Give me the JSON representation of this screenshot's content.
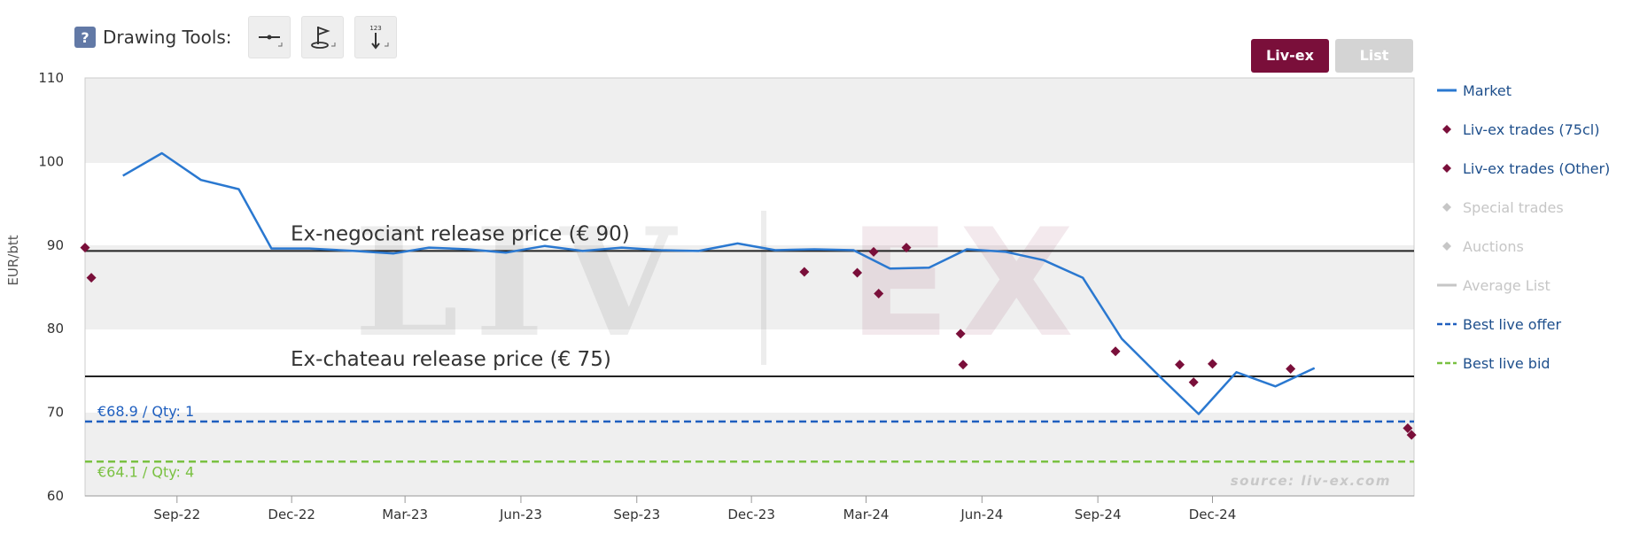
{
  "toolbar": {
    "help_glyph": "?",
    "label": "Drawing Tools:",
    "tools": [
      {
        "name": "line-tool-icon"
      },
      {
        "name": "flag-tool-icon"
      },
      {
        "name": "measure-tool-icon",
        "glyph": "123"
      }
    ]
  },
  "view_toggle": {
    "active": "Liv-ex",
    "inactive": "List",
    "colors": {
      "active_bg": "#7a0f3a",
      "inactive_bg": "#d4d4d4"
    }
  },
  "watermark": {
    "text_left": "LIV",
    "text_right": "EX"
  },
  "source_note": "source: liv-ex.com",
  "colors": {
    "market": "#2a78d0",
    "trades": "#7a0f3a",
    "best_offer": "#1f5fbf",
    "best_bid": "#7ac142",
    "special": "#cccccc",
    "release_line": "#222222",
    "band": "#efefef"
  },
  "chart_data": {
    "type": "line",
    "ylabel": "EUR/btt",
    "ylim": [
      60,
      110
    ],
    "yticks": [
      60,
      70,
      80,
      90,
      100,
      110
    ],
    "x_range": [
      "2022-06-20",
      "2025-05-10"
    ],
    "xticks": [
      {
        "label": "Sep-22",
        "date": "2022-09-01"
      },
      {
        "label": "Dec-22",
        "date": "2022-12-01"
      },
      {
        "label": "Mar-23",
        "date": "2023-03-01"
      },
      {
        "label": "Jun-23",
        "date": "2023-06-01"
      },
      {
        "label": "Sep-23",
        "date": "2023-09-01"
      },
      {
        "label": "Dec-23",
        "date": "2023-12-01"
      },
      {
        "label": "Mar-24",
        "date": "2024-03-01"
      },
      {
        "label": "Jun-24",
        "date": "2024-06-01"
      },
      {
        "label": "Sep-24",
        "date": "2024-09-01"
      },
      {
        "label": "Dec-24",
        "date": "2024-12-01"
      }
    ],
    "series": [
      {
        "name": "Market",
        "kind": "line",
        "points": [
          [
            "2022-07-20",
            98.3
          ],
          [
            "2022-08-20",
            101.0
          ],
          [
            "2022-09-20",
            97.8
          ],
          [
            "2022-10-20",
            96.7
          ],
          [
            "2022-11-15",
            89.6
          ],
          [
            "2022-12-15",
            89.6
          ],
          [
            "2023-01-20",
            89.3
          ],
          [
            "2023-02-20",
            89.0
          ],
          [
            "2023-03-20",
            89.7
          ],
          [
            "2023-04-20",
            89.5
          ],
          [
            "2023-05-20",
            89.1
          ],
          [
            "2023-06-20",
            89.9
          ],
          [
            "2023-07-20",
            89.3
          ],
          [
            "2023-08-20",
            89.7
          ],
          [
            "2023-09-20",
            89.4
          ],
          [
            "2023-10-20",
            89.3
          ],
          [
            "2023-11-20",
            90.2
          ],
          [
            "2023-12-20",
            89.4
          ],
          [
            "2024-01-20",
            89.5
          ],
          [
            "2024-02-20",
            89.4
          ],
          [
            "2024-03-20",
            87.2
          ],
          [
            "2024-04-20",
            87.3
          ],
          [
            "2024-05-20",
            89.5
          ],
          [
            "2024-06-20",
            89.2
          ],
          [
            "2024-07-20",
            88.2
          ],
          [
            "2024-08-20",
            86.1
          ],
          [
            "2024-09-20",
            78.8
          ],
          [
            "2024-10-20",
            74.3
          ],
          [
            "2024-11-20",
            69.8
          ],
          [
            "2024-12-20",
            74.8
          ],
          [
            "2025-01-20",
            73.1
          ],
          [
            "2025-02-20",
            75.3
          ]
        ]
      },
      {
        "name": "Liv-ex trades (75cl)",
        "kind": "markers",
        "points": [
          [
            "2022-06-20",
            89.7
          ],
          [
            "2022-06-25",
            86.1
          ],
          [
            "2024-01-12",
            86.8
          ],
          [
            "2024-02-23",
            86.7
          ],
          [
            "2024-03-07",
            89.2
          ],
          [
            "2024-03-11",
            84.2
          ],
          [
            "2024-04-02",
            89.7
          ],
          [
            "2024-05-15",
            79.4
          ],
          [
            "2024-05-17",
            75.7
          ],
          [
            "2024-09-15",
            77.3
          ],
          [
            "2024-11-05",
            75.7
          ],
          [
            "2024-11-16",
            73.6
          ],
          [
            "2024-12-01",
            75.8
          ],
          [
            "2025-02-01",
            75.2
          ],
          [
            "2025-05-05",
            68.1
          ]
        ]
      },
      {
        "name": "Liv-ex trades (Other)",
        "kind": "markers",
        "points": [
          [
            "2025-05-08",
            67.3
          ]
        ]
      },
      {
        "name": "Special trades",
        "kind": "legend-only"
      },
      {
        "name": "Auctions",
        "kind": "legend-only"
      },
      {
        "name": "Average List",
        "kind": "legend-only"
      },
      {
        "name": "Best live offer",
        "kind": "hline",
        "value": 68.9,
        "label": "€68.9 / Qty: 1"
      },
      {
        "name": "Best live bid",
        "kind": "hline",
        "value": 64.1,
        "label": "€64.1 / Qty: 4"
      }
    ],
    "reference_lines": [
      {
        "value": 89.3,
        "label": "Ex-negociant release price   (€ 90)"
      },
      {
        "value": 74.3,
        "label": "Ex-chateau release price (€  75)"
      }
    ]
  }
}
